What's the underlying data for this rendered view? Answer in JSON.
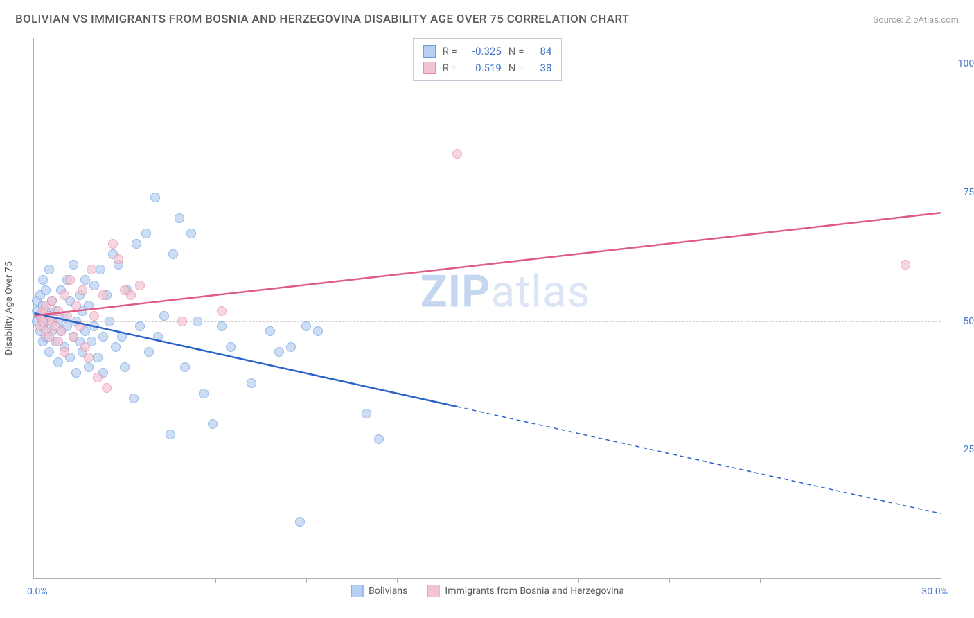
{
  "title": "BOLIVIAN VS IMMIGRANTS FROM BOSNIA AND HERZEGOVINA DISABILITY AGE OVER 75 CORRELATION CHART",
  "source": "Source: ZipAtlas.com",
  "watermark_bold": "ZIP",
  "watermark_rest": "atlas",
  "ylabel": "Disability Age Over 75",
  "chart": {
    "type": "scatter",
    "xlim": [
      0,
      30
    ],
    "ylim": [
      0,
      105
    ],
    "x_tick_step": 3,
    "background_color": "#ffffff",
    "grid_color": "#d0d0d0",
    "axis_color": "#b0b0b0",
    "y_ticks": [
      {
        "v": 25,
        "label": "25.0%"
      },
      {
        "v": 50,
        "label": "50.0%"
      },
      {
        "v": 75,
        "label": "75.0%"
      },
      {
        "v": 100,
        "label": "100.0%"
      }
    ],
    "x_min_label": "0.0%",
    "x_max_label": "30.0%",
    "tick_label_color": "#4374c9",
    "label_fontsize": 14,
    "title_fontsize": 17
  },
  "series": [
    {
      "name": "Bolivians",
      "fill": "#b7cff0",
      "stroke": "#6a9de0",
      "line_color": "#2a62c8",
      "R": "-0.325",
      "N": "84",
      "reg": {
        "x1": 0,
        "y1": 51.5,
        "x2": 30,
        "y2": 12.5,
        "solid_until_x": 14
      },
      "points": [
        [
          0.1,
          52
        ],
        [
          0.1,
          50
        ],
        [
          0.1,
          54
        ],
        [
          0.2,
          51
        ],
        [
          0.2,
          48
        ],
        [
          0.2,
          55
        ],
        [
          0.3,
          49
        ],
        [
          0.3,
          53
        ],
        [
          0.3,
          46
        ],
        [
          0.3,
          58
        ],
        [
          0.4,
          52
        ],
        [
          0.4,
          47
        ],
        [
          0.4,
          56
        ],
        [
          0.5,
          50
        ],
        [
          0.5,
          44
        ],
        [
          0.5,
          60
        ],
        [
          0.6,
          48
        ],
        [
          0.6,
          54
        ],
        [
          0.7,
          46
        ],
        [
          0.7,
          52
        ],
        [
          0.8,
          50
        ],
        [
          0.8,
          42
        ],
        [
          0.9,
          56
        ],
        [
          0.9,
          48
        ],
        [
          1.0,
          51
        ],
        [
          1.0,
          45
        ],
        [
          1.1,
          58
        ],
        [
          1.1,
          49
        ],
        [
          1.2,
          43
        ],
        [
          1.2,
          54
        ],
        [
          1.3,
          47
        ],
        [
          1.3,
          61
        ],
        [
          1.4,
          50
        ],
        [
          1.4,
          40
        ],
        [
          1.5,
          55
        ],
        [
          1.5,
          46
        ],
        [
          1.6,
          52
        ],
        [
          1.6,
          44
        ],
        [
          1.7,
          58
        ],
        [
          1.7,
          48
        ],
        [
          1.8,
          41
        ],
        [
          1.8,
          53
        ],
        [
          1.9,
          46
        ],
        [
          2.0,
          57
        ],
        [
          2.0,
          49
        ],
        [
          2.1,
          43
        ],
        [
          2.2,
          60
        ],
        [
          2.3,
          47
        ],
        [
          2.3,
          40
        ],
        [
          2.4,
          55
        ],
        [
          2.5,
          50
        ],
        [
          2.6,
          63
        ],
        [
          2.7,
          45
        ],
        [
          2.8,
          61
        ],
        [
          2.9,
          47
        ],
        [
          3.0,
          41
        ],
        [
          3.1,
          56
        ],
        [
          3.3,
          35
        ],
        [
          3.4,
          65
        ],
        [
          3.5,
          49
        ],
        [
          3.7,
          67
        ],
        [
          3.8,
          44
        ],
        [
          4.0,
          74
        ],
        [
          4.1,
          47
        ],
        [
          4.3,
          51
        ],
        [
          4.5,
          28
        ],
        [
          4.6,
          63
        ],
        [
          4.8,
          70
        ],
        [
          5.0,
          41
        ],
        [
          5.2,
          67
        ],
        [
          5.4,
          50
        ],
        [
          5.6,
          36
        ],
        [
          5.9,
          30
        ],
        [
          6.2,
          49
        ],
        [
          6.5,
          45
        ],
        [
          7.2,
          38
        ],
        [
          7.8,
          48
        ],
        [
          8.1,
          44
        ],
        [
          8.5,
          45
        ],
        [
          9.0,
          49
        ],
        [
          9.4,
          48
        ],
        [
          11.0,
          32
        ],
        [
          11.4,
          27
        ],
        [
          8.8,
          11
        ]
      ]
    },
    {
      "name": "Immigrants from Bosnia and Herzegovina",
      "fill": "#f3c5d3",
      "stroke": "#e88aa8",
      "line_color": "#e05a86",
      "R": "0.519",
      "N": "38",
      "reg": {
        "x1": 0,
        "y1": 51,
        "x2": 30,
        "y2": 71,
        "solid_until_x": 30
      },
      "points": [
        [
          0.2,
          51
        ],
        [
          0.2,
          49
        ],
        [
          0.3,
          52
        ],
        [
          0.3,
          50
        ],
        [
          0.4,
          48
        ],
        [
          0.4,
          53
        ],
        [
          0.5,
          51
        ],
        [
          0.5,
          47
        ],
        [
          0.6,
          50
        ],
        [
          0.6,
          54
        ],
        [
          0.7,
          49
        ],
        [
          0.8,
          46
        ],
        [
          0.8,
          52
        ],
        [
          0.9,
          48
        ],
        [
          1.0,
          55
        ],
        [
          1.0,
          44
        ],
        [
          1.1,
          51
        ],
        [
          1.2,
          58
        ],
        [
          1.3,
          47
        ],
        [
          1.4,
          53
        ],
        [
          1.5,
          49
        ],
        [
          1.6,
          56
        ],
        [
          1.7,
          45
        ],
        [
          1.8,
          43
        ],
        [
          1.9,
          60
        ],
        [
          2.0,
          51
        ],
        [
          2.1,
          39
        ],
        [
          2.3,
          55
        ],
        [
          2.4,
          37
        ],
        [
          2.6,
          65
        ],
        [
          2.8,
          62
        ],
        [
          3.0,
          56
        ],
        [
          3.2,
          55
        ],
        [
          3.5,
          57
        ],
        [
          4.9,
          50
        ],
        [
          6.2,
          52
        ],
        [
          28.8,
          61
        ],
        [
          14.0,
          82.5
        ]
      ]
    }
  ],
  "legend_labels": {
    "r_label": "R =",
    "n_label": "N ="
  }
}
